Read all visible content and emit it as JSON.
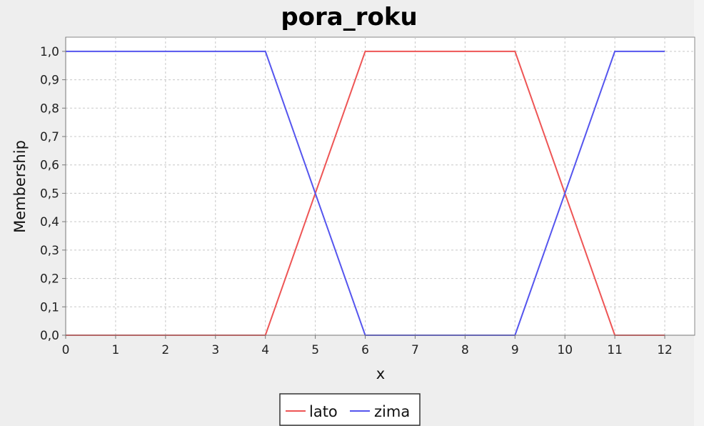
{
  "chart_data": {
    "type": "line",
    "title": "pora_roku",
    "xlabel": "x",
    "ylabel": "Membership",
    "xlim": [
      0,
      12.6
    ],
    "ylim": [
      0,
      1.05
    ],
    "x_ticks": [
      "0",
      "1",
      "2",
      "3",
      "4",
      "5",
      "6",
      "7",
      "8",
      "9",
      "10",
      "11",
      "12"
    ],
    "y_ticks": [
      "0,0",
      "0,1",
      "0,2",
      "0,3",
      "0,4",
      "0,5",
      "0,6",
      "0,7",
      "0,8",
      "0,9",
      "1,0"
    ],
    "grid": true,
    "legend_position": "bottom-center",
    "series": [
      {
        "name": "lato",
        "color": "#ee5555",
        "x": [
          0,
          4,
          6,
          9,
          11,
          12
        ],
        "y": [
          0,
          0,
          1,
          1,
          0,
          0
        ]
      },
      {
        "name": "zima",
        "color": "#5555ee",
        "x": [
          0,
          4,
          6,
          9,
          11,
          12
        ],
        "y": [
          1,
          1,
          0,
          0,
          1,
          1
        ]
      }
    ]
  }
}
